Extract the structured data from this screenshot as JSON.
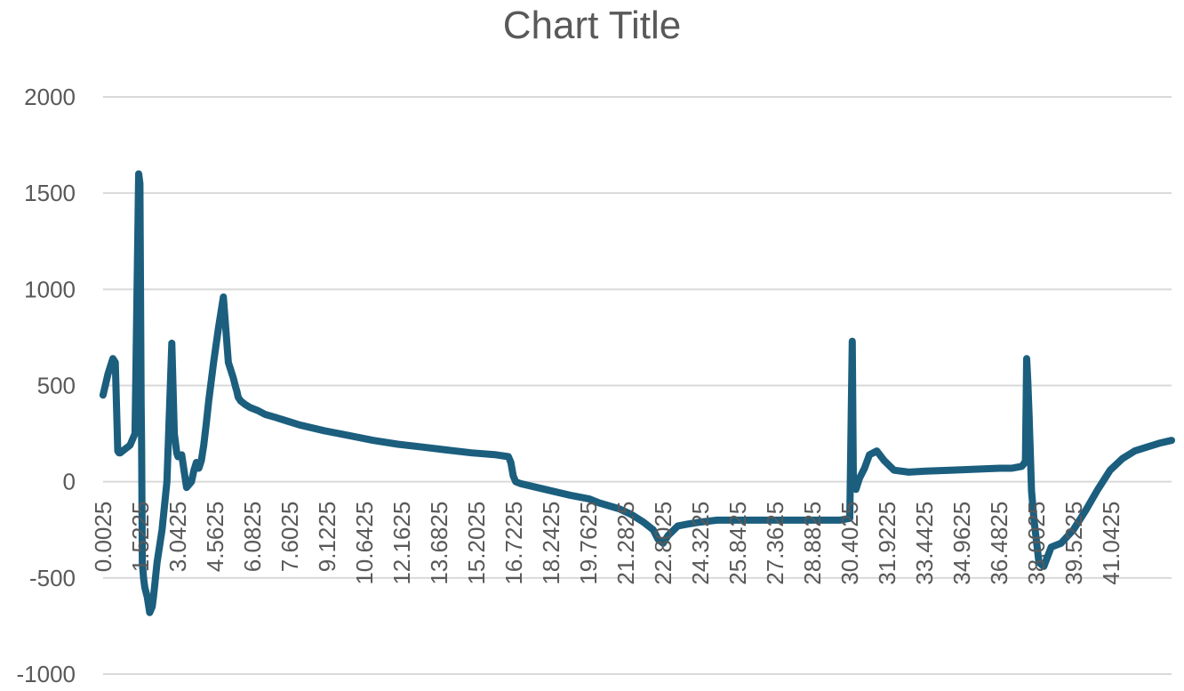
{
  "chart_data": {
    "type": "line",
    "title": "Chart Title",
    "xlabel": "",
    "ylabel": "",
    "ylim": [
      -1000,
      2000
    ],
    "yticks": [
      "2000",
      "1500",
      "1000",
      "500",
      "0",
      "-500",
      "-1000"
    ],
    "ytick_values": [
      2000,
      1500,
      1000,
      500,
      0,
      -500,
      -1000
    ],
    "xlim": [
      0.0025,
      43.5
    ],
    "xticks": [
      "0.0025",
      "1.5225",
      "3.0425",
      "4.5625",
      "6.0825",
      "7.6025",
      "9.1225",
      "10.6425",
      "12.1625",
      "13.6825",
      "15.2025",
      "16.7225",
      "18.2425",
      "19.7625",
      "21.2825",
      "22.8025",
      "24.3225",
      "25.8425",
      "27.3625",
      "28.8825",
      "30.4025",
      "31.9225",
      "33.4425",
      "34.9625",
      "36.4825",
      "38.0025",
      "39.5225",
      "41.0425"
    ],
    "xtick_values": [
      0.0025,
      1.5225,
      3.0425,
      4.5625,
      6.0825,
      7.6025,
      9.1225,
      10.6425,
      12.1625,
      13.6825,
      15.2025,
      16.7225,
      18.2425,
      19.7625,
      21.2825,
      22.8025,
      24.3225,
      25.8425,
      27.3625,
      28.8825,
      30.4025,
      31.9225,
      33.4425,
      34.9625,
      36.4825,
      38.0025,
      39.5225,
      41.0425
    ],
    "grid": true,
    "legend": "none",
    "line_color": "#1b5e7e",
    "series": [
      {
        "x": [
          0.0,
          0.2,
          0.4,
          0.5,
          0.6,
          0.65,
          0.7,
          0.9,
          1.1,
          1.3,
          1.45,
          1.5,
          1.55,
          1.57,
          1.6,
          1.65,
          1.7,
          1.8,
          1.9,
          2.0,
          2.05,
          2.1,
          2.2,
          2.4,
          2.6,
          2.8,
          2.9,
          2.95,
          3.0,
          3.05,
          3.2,
          3.4,
          3.6,
          3.7,
          3.8,
          3.9,
          4.0,
          4.1,
          4.2,
          4.3,
          4.5,
          4.7,
          4.9,
          5.1,
          5.3,
          5.4,
          5.45,
          5.5,
          5.6,
          5.8,
          6.0,
          6.3,
          6.6,
          7.0,
          7.5,
          8.0,
          9.0,
          10.0,
          11.0,
          12.0,
          13.0,
          14.0,
          15.0,
          16.0,
          16.5,
          16.6,
          16.7,
          16.8,
          17.0,
          18.0,
          19.0,
          19.8,
          20.2,
          21.0,
          21.5,
          22.0,
          22.4,
          22.6,
          22.8,
          23.0,
          23.4,
          23.8,
          24.3,
          25.0,
          26.0,
          27.0,
          28.0,
          29.0,
          30.0,
          30.4,
          30.5,
          30.55,
          30.6,
          30.65,
          30.8,
          31.0,
          31.2,
          31.5,
          31.8,
          32.2,
          32.8,
          33.5,
          34.5,
          35.5,
          36.5,
          37.0,
          37.2,
          37.4,
          37.5,
          37.55,
          37.6,
          37.65,
          37.7,
          37.8,
          37.9,
          38.1,
          38.3,
          38.6,
          39.0,
          39.5,
          40.0,
          40.5,
          41.0,
          41.5,
          42.0,
          42.5,
          43.0,
          43.5
        ],
        "y": [
          450,
          560,
          640,
          620,
          160,
          150,
          150,
          170,
          190,
          250,
          1600,
          1550,
          400,
          200,
          -420,
          -500,
          -550,
          -600,
          -680,
          -650,
          -600,
          -540,
          -420,
          -250,
          0,
          720,
          250,
          200,
          150,
          130,
          140,
          -30,
          0,
          60,
          100,
          70,
          110,
          190,
          300,
          420,
          620,
          800,
          960,
          620,
          540,
          490,
          470,
          440,
          420,
          400,
          385,
          370,
          350,
          335,
          315,
          295,
          265,
          240,
          215,
          195,
          180,
          165,
          150,
          140,
          130,
          100,
          30,
          0,
          -10,
          -40,
          -70,
          -90,
          -110,
          -140,
          -170,
          -210,
          -250,
          -300,
          -320,
          -280,
          -230,
          -220,
          -210,
          -200,
          -200,
          -200,
          -200,
          -200,
          -200,
          -190,
          730,
          -30,
          0,
          -40,
          20,
          70,
          140,
          160,
          110,
          60,
          50,
          55,
          60,
          65,
          70,
          70,
          75,
          80,
          95,
          110,
          640,
          520,
          350,
          -50,
          -200,
          -420,
          -440,
          -340,
          -320,
          -250,
          -150,
          -40,
          60,
          120,
          160,
          180,
          200,
          215
        ]
      }
    ]
  }
}
